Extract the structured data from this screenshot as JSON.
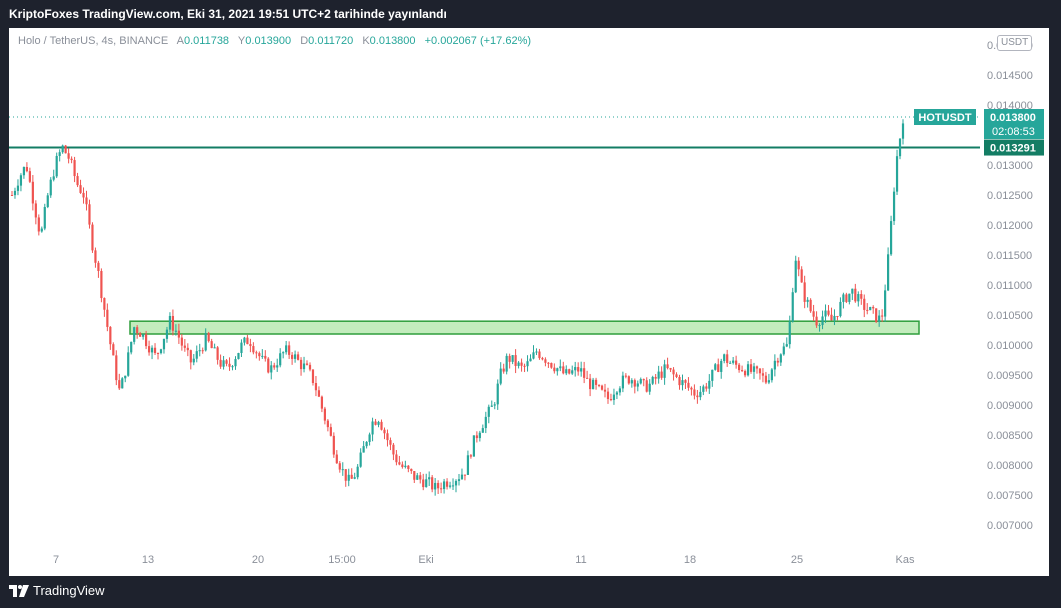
{
  "header": {
    "title": "KriptoFoxes TradingView.com, Eki 31, 2021 19:51 UTC+2 tarihinde yayınlandı"
  },
  "legend": {
    "symbol": "Holo / TetherUS, 4s, BINANCE",
    "open_label": "A",
    "open": "0.011738",
    "high_label": "Y",
    "high": "0.013900",
    "low_label": "D",
    "low": "0.011720",
    "close_label": "K",
    "close": "0.013800",
    "change": "+0.002067 (+17.62%)"
  },
  "price_scale": {
    "currency": "USDT",
    "ticks": [
      "0.015000",
      "0.014500",
      "0.014000",
      "0.013500",
      "0.013000",
      "0.012500",
      "0.012000",
      "0.011500",
      "0.011000",
      "0.010500",
      "0.010000",
      "0.009500",
      "0.009000",
      "0.008500",
      "0.008000",
      "0.007500",
      "0.007000"
    ]
  },
  "badges": {
    "ticker": "HOTUSDT",
    "last_price": "0.013800",
    "countdown": "02:08:53",
    "line_price": "0.013291"
  },
  "time_axis": {
    "labels": [
      "7",
      "13",
      "20",
      "15:00",
      "Eki",
      "11",
      "18",
      "25",
      "Kas"
    ]
  },
  "footer": {
    "brand": "TradingView"
  },
  "colors": {
    "up": "#26a69a",
    "down": "#ef5350",
    "line": "#137d64",
    "zone_fill": "#b9e9b1",
    "zone_border": "#2e9e3c",
    "background": "#ffffff",
    "frame": "#1e222d"
  },
  "chart_data": {
    "type": "candlestick",
    "title": "Holo / TetherUS, 4s, BINANCE",
    "xlabel": "",
    "ylabel": "",
    "ylim": [
      0.0066,
      0.0154
    ],
    "grid": false,
    "x_ticks": [
      "7",
      "13",
      "20",
      "15:00",
      "Eki",
      "11",
      "18",
      "25",
      "Kas"
    ],
    "y_ticks": [
      0.015,
      0.0145,
      0.014,
      0.0135,
      0.013,
      0.0125,
      0.012,
      0.0115,
      0.011,
      0.0105,
      0.01,
      0.0095,
      0.009,
      0.0085,
      0.008,
      0.0075,
      0.007
    ],
    "horizontal_line": 0.013291,
    "support_zone": [
      0.01025,
      0.01033
    ],
    "last_price": 0.0138,
    "close_path": [
      [
        0.0125,
        0.0128,
        0.013,
        0.0124,
        0.0118,
        0.0125,
        0.013,
        0.0133,
        0.0131,
        0.0127,
        0.0125,
        0.0118,
        0.0112,
        0.0105,
        0.0098,
        0.0092,
        0.0097,
        0.0103,
        0.0102,
        0.01,
        0.0098,
        0.0101,
        0.0104,
        0.0102,
        0.0099,
        0.0097,
        0.0099,
        0.0101,
        0.0099,
        0.0097,
        0.0096,
        0.0098,
        0.01,
        0.0101,
        0.0099,
        0.0097,
        0.0096,
        0.00975,
        0.0099,
        0.00985,
        0.0097,
        0.0096,
        0.0094,
        0.009,
        0.0086,
        0.0082,
        0.0079,
        0.0077,
        0.0079,
        0.0083,
        0.0087,
        0.0088,
        0.0085,
        0.0082,
        0.008,
        0.0079,
        0.0078,
        0.00775,
        0.0077,
        0.0076,
        0.0077,
        0.00775,
        0.0078,
        0.0079,
        0.0083,
        0.0086,
        0.0088,
        0.009,
        0.0095,
        0.0098,
        0.0097,
        0.0096,
        0.0097,
        0.0099,
        0.0098,
        0.0097,
        0.0096,
        0.0095,
        0.00955,
        0.0096,
        0.0094,
        0.0093,
        0.0092,
        0.0091,
        0.0093,
        0.0094,
        0.00945,
        0.0094,
        0.0093,
        0.00935,
        0.0095,
        0.0096,
        0.0095,
        0.0094,
        0.0093,
        0.0092,
        0.00925,
        0.0094,
        0.0096,
        0.0098,
        0.0097,
        0.00965,
        0.0096,
        0.00955,
        0.0095,
        0.0094,
        0.0097,
        0.0099,
        0.01,
        0.0115,
        0.0109,
        0.0106,
        0.0104,
        0.0105,
        0.0104,
        0.0106,
        0.0108,
        0.0109,
        0.0107,
        0.0106,
        0.0105,
        0.0104,
        0.0115,
        0.013,
        0.0138
      ]
    ]
  }
}
